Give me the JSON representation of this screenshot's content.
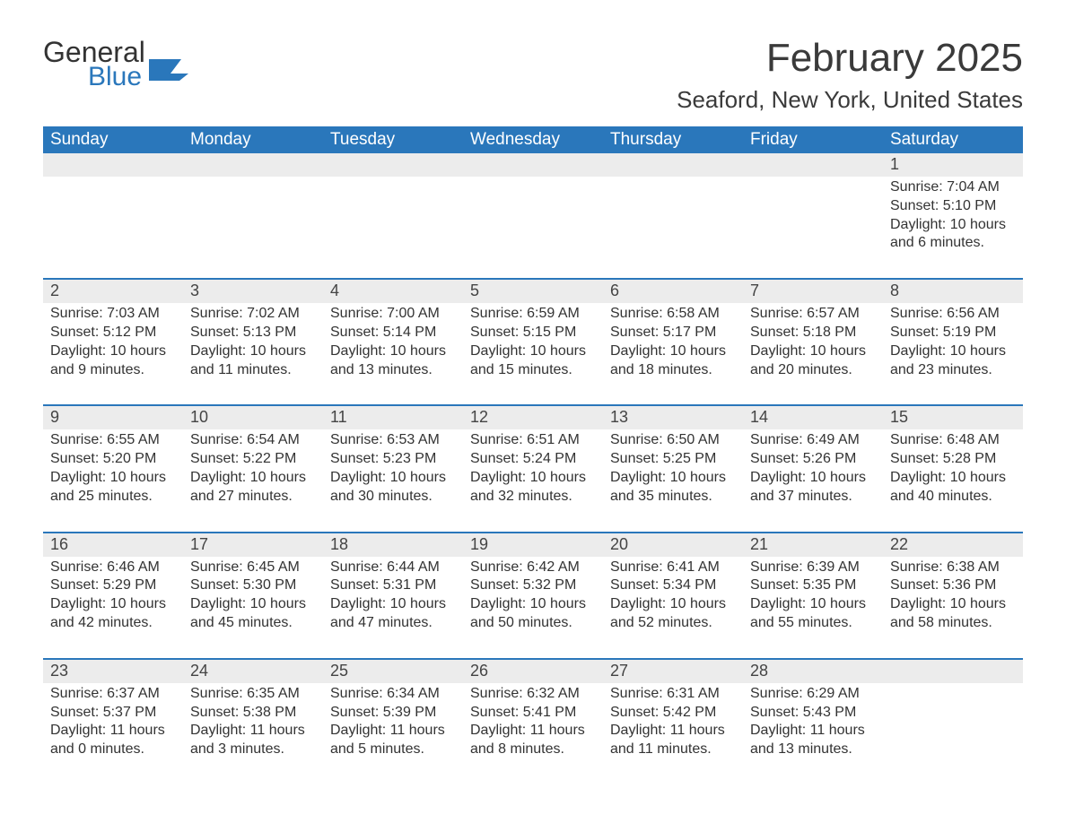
{
  "brand": {
    "word1": "General",
    "word2": "Blue",
    "accent": "#2a77bb"
  },
  "title": "February 2025",
  "location": "Seaford, New York, United States",
  "colors": {
    "header_bg": "#2a77bb",
    "header_fg": "#ffffff",
    "daybar_bg": "#ececec",
    "rule": "#2a77bb",
    "text": "#333333"
  },
  "weekdays": [
    "Sunday",
    "Monday",
    "Tuesday",
    "Wednesday",
    "Thursday",
    "Friday",
    "Saturday"
  ],
  "labels": {
    "sunrise": "Sunrise:",
    "sunset": "Sunset:",
    "daylight": "Daylight:"
  },
  "weeks": [
    [
      null,
      null,
      null,
      null,
      null,
      null,
      {
        "n": "1",
        "sunrise": "7:04 AM",
        "sunset": "5:10 PM",
        "daylight": "10 hours and 6 minutes."
      }
    ],
    [
      {
        "n": "2",
        "sunrise": "7:03 AM",
        "sunset": "5:12 PM",
        "daylight": "10 hours and 9 minutes."
      },
      {
        "n": "3",
        "sunrise": "7:02 AM",
        "sunset": "5:13 PM",
        "daylight": "10 hours and 11 minutes."
      },
      {
        "n": "4",
        "sunrise": "7:00 AM",
        "sunset": "5:14 PM",
        "daylight": "10 hours and 13 minutes."
      },
      {
        "n": "5",
        "sunrise": "6:59 AM",
        "sunset": "5:15 PM",
        "daylight": "10 hours and 15 minutes."
      },
      {
        "n": "6",
        "sunrise": "6:58 AM",
        "sunset": "5:17 PM",
        "daylight": "10 hours and 18 minutes."
      },
      {
        "n": "7",
        "sunrise": "6:57 AM",
        "sunset": "5:18 PM",
        "daylight": "10 hours and 20 minutes."
      },
      {
        "n": "8",
        "sunrise": "6:56 AM",
        "sunset": "5:19 PM",
        "daylight": "10 hours and 23 minutes."
      }
    ],
    [
      {
        "n": "9",
        "sunrise": "6:55 AM",
        "sunset": "5:20 PM",
        "daylight": "10 hours and 25 minutes."
      },
      {
        "n": "10",
        "sunrise": "6:54 AM",
        "sunset": "5:22 PM",
        "daylight": "10 hours and 27 minutes."
      },
      {
        "n": "11",
        "sunrise": "6:53 AM",
        "sunset": "5:23 PM",
        "daylight": "10 hours and 30 minutes."
      },
      {
        "n": "12",
        "sunrise": "6:51 AM",
        "sunset": "5:24 PM",
        "daylight": "10 hours and 32 minutes."
      },
      {
        "n": "13",
        "sunrise": "6:50 AM",
        "sunset": "5:25 PM",
        "daylight": "10 hours and 35 minutes."
      },
      {
        "n": "14",
        "sunrise": "6:49 AM",
        "sunset": "5:26 PM",
        "daylight": "10 hours and 37 minutes."
      },
      {
        "n": "15",
        "sunrise": "6:48 AM",
        "sunset": "5:28 PM",
        "daylight": "10 hours and 40 minutes."
      }
    ],
    [
      {
        "n": "16",
        "sunrise": "6:46 AM",
        "sunset": "5:29 PM",
        "daylight": "10 hours and 42 minutes."
      },
      {
        "n": "17",
        "sunrise": "6:45 AM",
        "sunset": "5:30 PM",
        "daylight": "10 hours and 45 minutes."
      },
      {
        "n": "18",
        "sunrise": "6:44 AM",
        "sunset": "5:31 PM",
        "daylight": "10 hours and 47 minutes."
      },
      {
        "n": "19",
        "sunrise": "6:42 AM",
        "sunset": "5:32 PM",
        "daylight": "10 hours and 50 minutes."
      },
      {
        "n": "20",
        "sunrise": "6:41 AM",
        "sunset": "5:34 PM",
        "daylight": "10 hours and 52 minutes."
      },
      {
        "n": "21",
        "sunrise": "6:39 AM",
        "sunset": "5:35 PM",
        "daylight": "10 hours and 55 minutes."
      },
      {
        "n": "22",
        "sunrise": "6:38 AM",
        "sunset": "5:36 PM",
        "daylight": "10 hours and 58 minutes."
      }
    ],
    [
      {
        "n": "23",
        "sunrise": "6:37 AM",
        "sunset": "5:37 PM",
        "daylight": "11 hours and 0 minutes."
      },
      {
        "n": "24",
        "sunrise": "6:35 AM",
        "sunset": "5:38 PM",
        "daylight": "11 hours and 3 minutes."
      },
      {
        "n": "25",
        "sunrise": "6:34 AM",
        "sunset": "5:39 PM",
        "daylight": "11 hours and 5 minutes."
      },
      {
        "n": "26",
        "sunrise": "6:32 AM",
        "sunset": "5:41 PM",
        "daylight": "11 hours and 8 minutes."
      },
      {
        "n": "27",
        "sunrise": "6:31 AM",
        "sunset": "5:42 PM",
        "daylight": "11 hours and 11 minutes."
      },
      {
        "n": "28",
        "sunrise": "6:29 AM",
        "sunset": "5:43 PM",
        "daylight": "11 hours and 13 minutes."
      },
      null
    ]
  ]
}
